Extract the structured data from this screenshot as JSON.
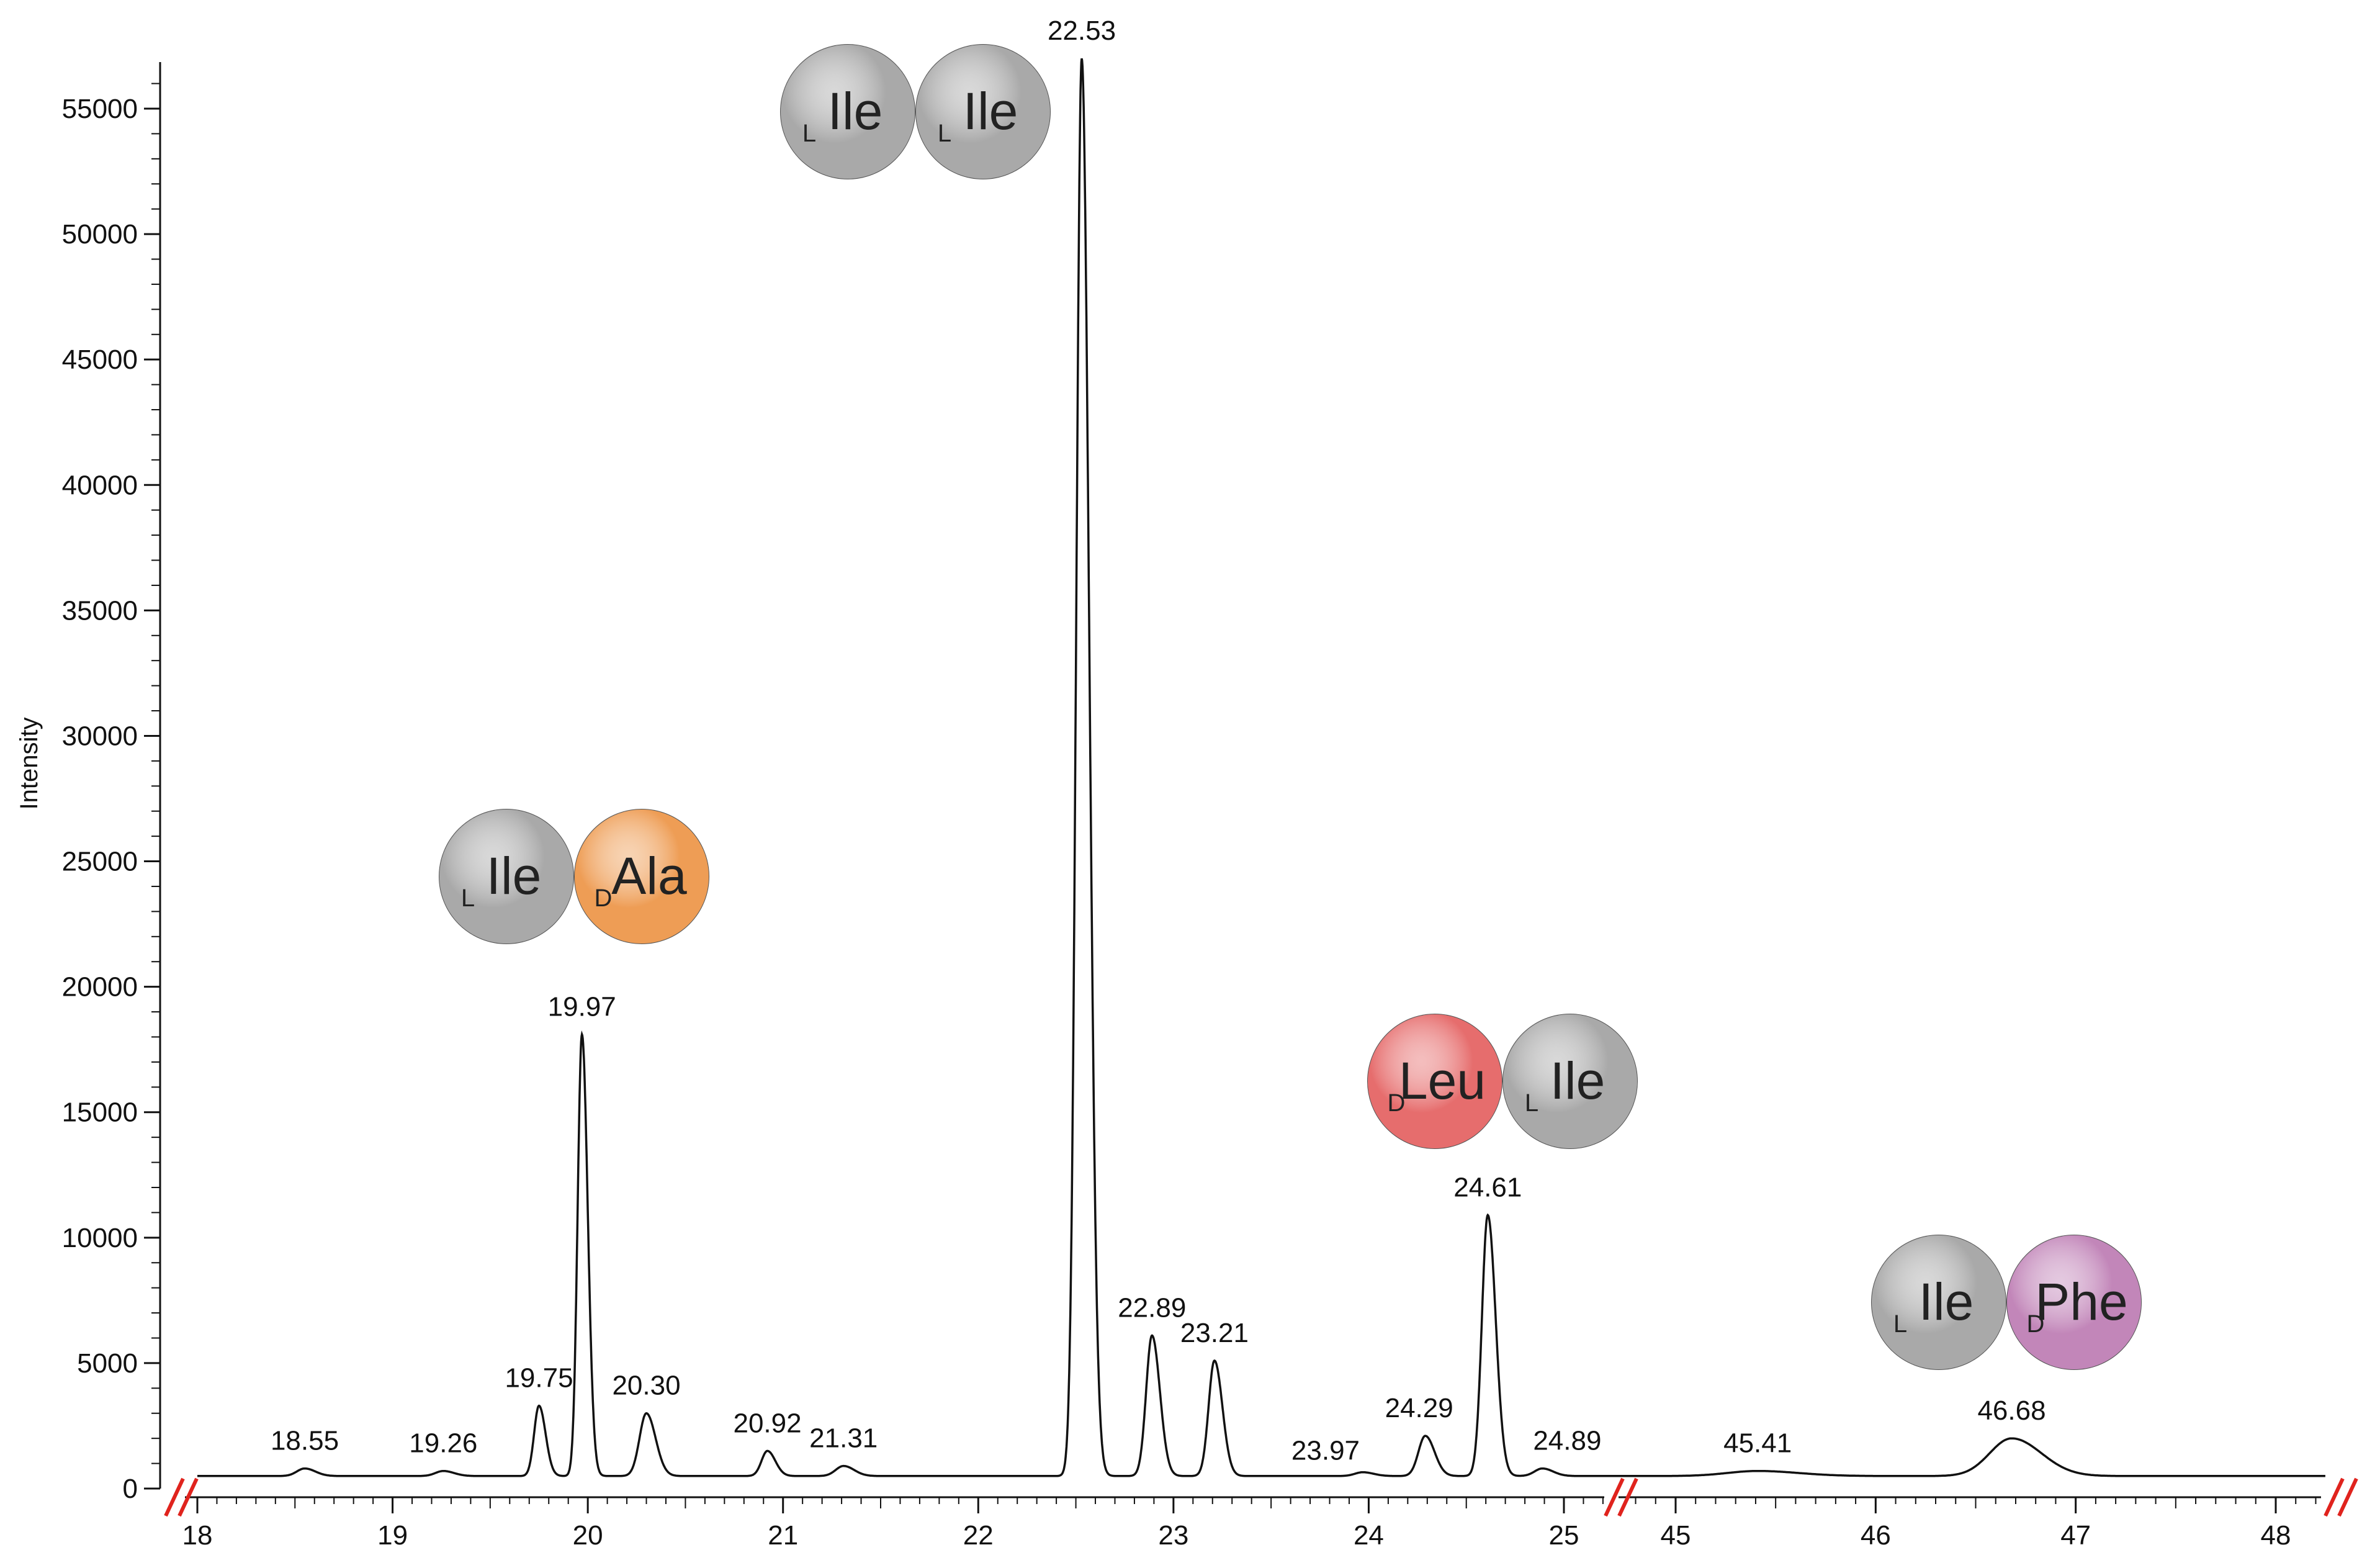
{
  "chart_data": {
    "type": "line",
    "xlabel": "",
    "ylabel": "Intensity",
    "ylim": [
      0,
      57000
    ],
    "y_ticks": [
      "0",
      "5000",
      "10000",
      "15000",
      "20000",
      "25000",
      "30000",
      "35000",
      "40000",
      "45000",
      "50000",
      "55000"
    ],
    "segments": [
      {
        "xlim": [
          18.0,
          25.25
        ],
        "x_ticks": [
          "18",
          "19",
          "20",
          "21",
          "22",
          "23",
          "24",
          "25"
        ]
      },
      {
        "xlim": [
          44.8,
          48.25
        ],
        "x_ticks": [
          "45",
          "46",
          "47",
          "48"
        ]
      }
    ],
    "axis_break_marks": [
      "//",
      "//",
      "//"
    ],
    "baseline": 500,
    "peaks": [
      {
        "x": 18.55,
        "y": 800,
        "label": "18.55",
        "width": 0.04
      },
      {
        "x": 19.26,
        "y": 700,
        "label": "19.26",
        "width": 0.04
      },
      {
        "x": 19.75,
        "y": 3300,
        "label": "19.75",
        "width": 0.025
      },
      {
        "x": 19.97,
        "y": 18100,
        "label": "19.97",
        "width": 0.022
      },
      {
        "x": 20.3,
        "y": 3000,
        "label": "20.30",
        "width": 0.035
      },
      {
        "x": 20.92,
        "y": 1500,
        "label": "20.92",
        "width": 0.03
      },
      {
        "x": 21.31,
        "y": 900,
        "label": "21.31",
        "width": 0.04
      },
      {
        "x": 22.53,
        "y": 57000,
        "label": "22.53",
        "width": 0.028
      },
      {
        "x": 22.89,
        "y": 6100,
        "label": "22.89",
        "width": 0.03
      },
      {
        "x": 23.21,
        "y": 5100,
        "label": "23.21",
        "width": 0.03
      },
      {
        "x": 23.97,
        "y": 650,
        "label": "23.97",
        "width": 0.04
      },
      {
        "x": 24.29,
        "y": 2100,
        "label": "24.29",
        "width": 0.035
      },
      {
        "x": 24.61,
        "y": 10900,
        "label": "24.61",
        "width": 0.03
      },
      {
        "x": 24.89,
        "y": 800,
        "label": "24.89",
        "width": 0.04
      },
      {
        "x": 45.41,
        "y": 700,
        "label": "45.41",
        "width": 0.15
      },
      {
        "x": 46.68,
        "y": 2000,
        "label": "46.68",
        "width": 0.11
      }
    ],
    "annotations": [
      {
        "near_peak": "22.53",
        "residues": [
          {
            "prefix": "L",
            "name": "Ile",
            "color": "#a9a9a9"
          },
          {
            "prefix": "L",
            "name": "Ile",
            "color": "#a9a9a9"
          }
        ]
      },
      {
        "near_peak": "19.97",
        "residues": [
          {
            "prefix": "L",
            "name": "Ile",
            "color": "#a9a9a9"
          },
          {
            "prefix": "D",
            "name": "Ala",
            "color": "#ee9d55"
          }
        ]
      },
      {
        "near_peak": "24.61",
        "residues": [
          {
            "prefix": "D",
            "name": "Leu",
            "color": "#e66d6d"
          },
          {
            "prefix": "L",
            "name": "Ile",
            "color": "#a9a9a9"
          }
        ]
      },
      {
        "near_peak": "46.68",
        "residues": [
          {
            "prefix": "L",
            "name": "Ile",
            "color": "#a9a9a9"
          },
          {
            "prefix": "D",
            "name": "Phe",
            "color": "#c286b9"
          }
        ]
      }
    ],
    "colors": {
      "trace": "#111111",
      "axis": "#111111",
      "break_mark": "#e0231d"
    },
    "grid": false
  }
}
